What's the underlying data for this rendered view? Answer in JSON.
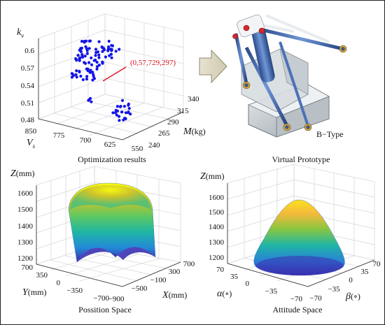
{
  "panels": {
    "optimization": {
      "caption": "Optimization results",
      "z_label": "k",
      "z_sub": "v",
      "x_label": "V",
      "x_sub": "s",
      "y_label": "M",
      "y_unit": "(kg)",
      "z_ticks": [
        "0.6",
        "0.57",
        "0.54",
        "0.51",
        "0.48"
      ],
      "x_ticks": [
        "850",
        "775",
        "700",
        "625",
        "550"
      ],
      "y_ticks": [
        "340",
        "315",
        "290",
        "265",
        "240"
      ],
      "annotation": "(0,57,729,297)",
      "annotation_color": "#e0141e",
      "point_color": "#1414e6"
    },
    "prototype": {
      "caption": "Virtual Prototype",
      "type_label": "B−Type"
    },
    "position_space": {
      "caption": "Possition Space",
      "z_label": "Z",
      "z_unit": "(mm)",
      "y_label": "Y",
      "y_unit": "(mm)",
      "x_label": "X",
      "x_unit": "(mm)",
      "z_ticks": [
        "1600",
        "1500",
        "1400",
        "1300",
        "1200"
      ],
      "y_ticks": [
        "700",
        "350",
        "0",
        "−350",
        "−700"
      ],
      "x_ticks": [
        "−900",
        "−500",
        "−100",
        "300",
        "700"
      ]
    },
    "attitude_space": {
      "caption": "Attitude Space",
      "z_label": "Z",
      "z_unit": "(mm)",
      "a_label": "α",
      "a_unit": "(∘)",
      "b_label": "β",
      "b_unit": "(∘)",
      "z_ticks": [
        "1600",
        "1500",
        "1400",
        "1300",
        "1200"
      ],
      "a_ticks": [
        "70",
        "35",
        "0",
        "−35",
        "−70"
      ],
      "b_ticks": [
        "−70",
        "−35",
        "0",
        "35",
        "70"
      ]
    }
  }
}
